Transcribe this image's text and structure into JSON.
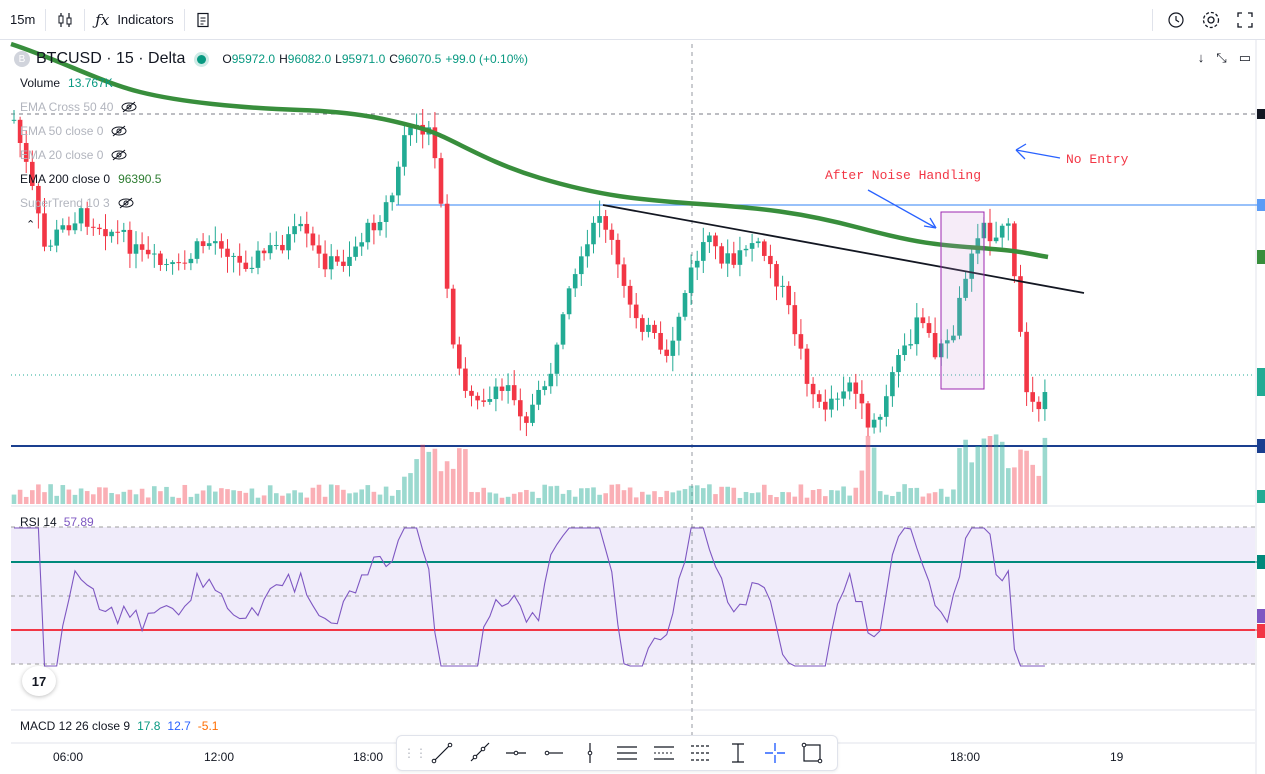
{
  "toolbar": {
    "interval": "15m",
    "indicators_label": "Indicators"
  },
  "legend": {
    "symbol_logo": "B",
    "symbol": "BTCUSD · 15 · Delta",
    "o_label": "O",
    "o_val": "95972.0",
    "h_label": "H",
    "h_val": "96082.0",
    "l_label": "L",
    "l_val": "95971.0",
    "c_label": "C",
    "c_val": "96070.5",
    "change": "+99.0 (+0.10%)"
  },
  "indicators": [
    {
      "name": "Volume",
      "value": "13.767K",
      "hidden": false,
      "value_color": "#089981"
    },
    {
      "name": "EMA Cross 50 40",
      "value": "",
      "hidden": true
    },
    {
      "name": "EMA 50 close 0",
      "value": "",
      "hidden": true
    },
    {
      "name": "EMA 20 close 0",
      "value": "",
      "hidden": true
    },
    {
      "name": "EMA 200 close 0",
      "value": "96390.5",
      "hidden": false,
      "value_color": "#2e7d32"
    },
    {
      "name": "SuperTrend 10 3",
      "value": "",
      "hidden": true
    }
  ],
  "rsi": {
    "label": "RSI 14",
    "value": "57.89"
  },
  "macd": {
    "label": "MACD 12 26 close 9",
    "v1": "17.8",
    "v2": "12.7",
    "v3": "-5.1"
  },
  "annotations": {
    "noise": "After Noise Handling",
    "no_entry": "No Entry"
  },
  "x_axis": [
    "06:00",
    "12:00",
    "18:00",
    "18:00",
    "19"
  ],
  "colors": {
    "up": "#22ab94",
    "down": "#f23645",
    "ema200": "#388e3c",
    "rsi_line": "#7e57c2",
    "rsi_band": "#ede7f6",
    "hline_blue": "#0d47a1",
    "hline_light_blue": "#2962ff",
    "rsi_upper": "#00897b",
    "rsi_lower": "#f23645"
  },
  "icons": [
    "candles-icon",
    "fx-icon",
    "template-icon",
    "alert-icon",
    "settings-icon",
    "fullscreen-icon",
    "trendline-icon",
    "ray-icon",
    "hline-icon",
    "hray-icon",
    "vline-icon",
    "parallel-channel-icon",
    "regression-icon",
    "pitchfork-icon",
    "fib-icon",
    "crosshair-icon",
    "rectangle-icon"
  ]
}
